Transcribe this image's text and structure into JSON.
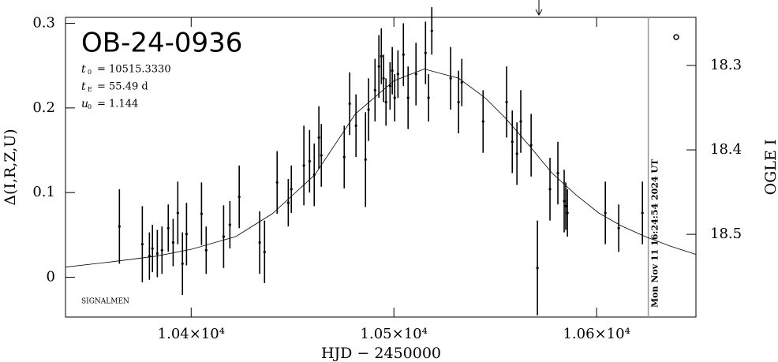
{
  "chart_data": {
    "type": "scatter",
    "title": "OB-24-0936",
    "params": [
      {
        "symbol": "t",
        "sub": "0",
        "text": "= 10515.3330"
      },
      {
        "symbol": "t",
        "sub": "E",
        "text": "= 55.49 d"
      },
      {
        "symbol": "u",
        "sub": "0",
        "text": "= 1.144"
      }
    ],
    "note": "SIGNALMEN",
    "x_label": "HJD − 2450000",
    "y_label": "Δ(I,R,Z,U)",
    "y2_label": "OGLE I",
    "xlim": [
      10338,
      10649
    ],
    "ylim": [
      -0.047,
      0.307
    ],
    "y2lim": [
      18.598,
      18.243
    ],
    "xticks": [
      {
        "value": 10400,
        "label": "1.04×10⁴"
      },
      {
        "value": 10500,
        "label": "1.05×10⁴"
      },
      {
        "value": 10600,
        "label": "1.06×10⁴"
      }
    ],
    "yticks": [
      0,
      0.1,
      0.2,
      0.3
    ],
    "y2ticks": [
      18.3,
      18.4,
      18.5
    ],
    "color": "#000000",
    "x": [
      10364.6,
      10375.9,
      10379.4,
      10380.9,
      10383.3,
      10385.6,
      10388.7,
      10391.1,
      10393.4,
      10395.7,
      10397.7,
      10405.1,
      10407.4,
      10416.0,
      10419.1,
      10423.7,
      10433.8,
      10436.2,
      10442.4,
      10447.9,
      10449.4,
      10455.6,
      10458.4,
      10460.7,
      10463.0,
      10464.2,
      10475.5,
      10478.2,
      10481.3,
      10486.0,
      10487.5,
      10490.7,
      10492.6,
      10493.8,
      10494.9,
      10496.1,
      10498.1,
      10499.2,
      10500.4,
      10502.0,
      10504.7,
      10507.0,
      10510.9,
      10515.6,
      10517.1,
      10518.7,
      10528.0,
      10531.9,
      10533.5,
      10544.0,
      10555.6,
      10558.4,
      10560.7,
      10562.6,
      10567.7,
      10570.8,
      10577.0,
      10580.9,
      10584.0,
      10584.8,
      10585.6,
      10604.3,
      10610.9,
      10622.6
    ],
    "values": [
      0.06,
      0.039,
      0.025,
      0.034,
      0.028,
      0.032,
      0.058,
      0.041,
      0.076,
      0.016,
      0.051,
      0.075,
      0.032,
      0.048,
      0.062,
      0.095,
      0.041,
      0.03,
      0.112,
      0.088,
      0.104,
      0.132,
      0.137,
      0.121,
      0.165,
      0.144,
      0.142,
      0.205,
      0.179,
      0.139,
      0.198,
      0.221,
      0.249,
      0.261,
      0.235,
      0.207,
      0.226,
      0.244,
      0.212,
      0.24,
      0.263,
      0.212,
      0.24,
      0.265,
      0.212,
      0.291,
      0.235,
      0.207,
      0.23,
      0.184,
      0.207,
      0.16,
      0.146,
      0.184,
      0.156,
      0.011,
      0.104,
      0.123,
      0.09,
      0.084,
      0.076,
      0.076,
      0.058,
      0.076
    ],
    "errors": [
      0.044,
      0.045,
      0.028,
      0.028,
      0.028,
      0.028,
      0.028,
      0.028,
      0.037,
      0.037,
      0.037,
      0.037,
      0.028,
      0.037,
      0.028,
      0.037,
      0.037,
      0.037,
      0.037,
      0.028,
      0.028,
      0.047,
      0.037,
      0.037,
      0.037,
      0.037,
      0.037,
      0.037,
      0.037,
      0.056,
      0.037,
      0.037,
      0.037,
      0.033,
      0.028,
      0.028,
      0.028,
      0.028,
      0.028,
      0.028,
      0.037,
      0.037,
      0.037,
      0.037,
      0.028,
      0.028,
      0.037,
      0.037,
      0.028,
      0.037,
      0.042,
      0.037,
      0.037,
      0.037,
      0.037,
      0.056,
      0.037,
      0.037,
      0.037,
      0.028,
      0.028,
      0.037,
      0.028,
      0.037
    ],
    "model": {
      "x": [
        10338,
        10360,
        10383,
        10400,
        10422,
        10440,
        10461,
        10481,
        10500,
        10515,
        10532,
        10545,
        10555,
        10567,
        10578,
        10590,
        10601,
        10612,
        10624,
        10636,
        10649
      ],
      "values": [
        0.012,
        0.018,
        0.025,
        0.033,
        0.048,
        0.075,
        0.121,
        0.193,
        0.232,
        0.246,
        0.235,
        0.212,
        0.188,
        0.155,
        0.123,
        0.097,
        0.076,
        0.061,
        0.048,
        0.037,
        0.027
      ]
    },
    "date_line": {
      "x": 10625.5,
      "label": "Mon Nov 11 16:24:54 2024 UT"
    }
  }
}
